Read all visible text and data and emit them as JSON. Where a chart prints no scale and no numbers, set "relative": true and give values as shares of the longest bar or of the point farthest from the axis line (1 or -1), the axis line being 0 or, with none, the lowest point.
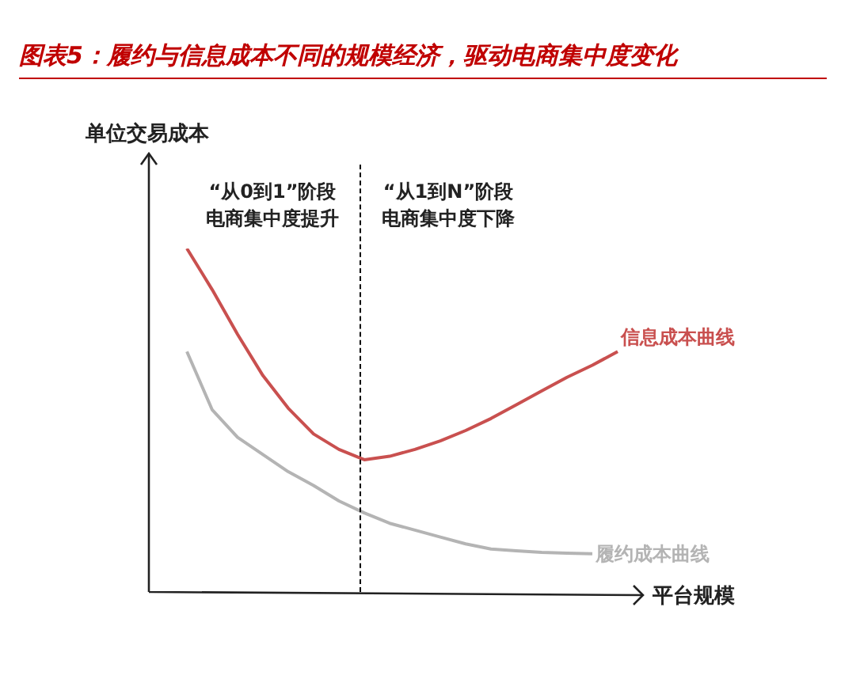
{
  "chart_data": {
    "type": "line",
    "title": "图表5：履约与信息成本不同的规模经济，驱动电商集中度变化",
    "xlabel": "平台规模",
    "ylabel": "单位交易成本",
    "relative": true,
    "legend": false,
    "categories": [
      null,
      null,
      null,
      null,
      null,
      null,
      null,
      null,
      null,
      null,
      null,
      null,
      null,
      null,
      null,
      null,
      null,
      null
    ],
    "series": [
      {
        "name": "信息成本曲线",
        "color": "#c9504f",
        "values": [
          1,
          0.88,
          0.75,
          0.63,
          0.535,
          0.46,
          0.415,
          0.385,
          0.395,
          0.415,
          0.44,
          0.47,
          0.505,
          0.545,
          0.585,
          0.625,
          0.66,
          0.7
        ]
      },
      {
        "name": "履约成本曲线",
        "color": "#b4b4b4",
        "values": [
          0.7,
          0.53,
          0.45,
          0.4,
          0.35,
          0.31,
          0.265,
          0.23,
          0.2,
          0.18,
          0.16,
          0.14,
          0.125,
          0.12,
          0.115,
          0.113,
          0.111,
          null
        ]
      }
    ],
    "annotations": [
      "“从0到1”阶段",
      "电商集中度提升",
      "“从1到N”阶段",
      "电商集中度下降"
    ]
  }
}
